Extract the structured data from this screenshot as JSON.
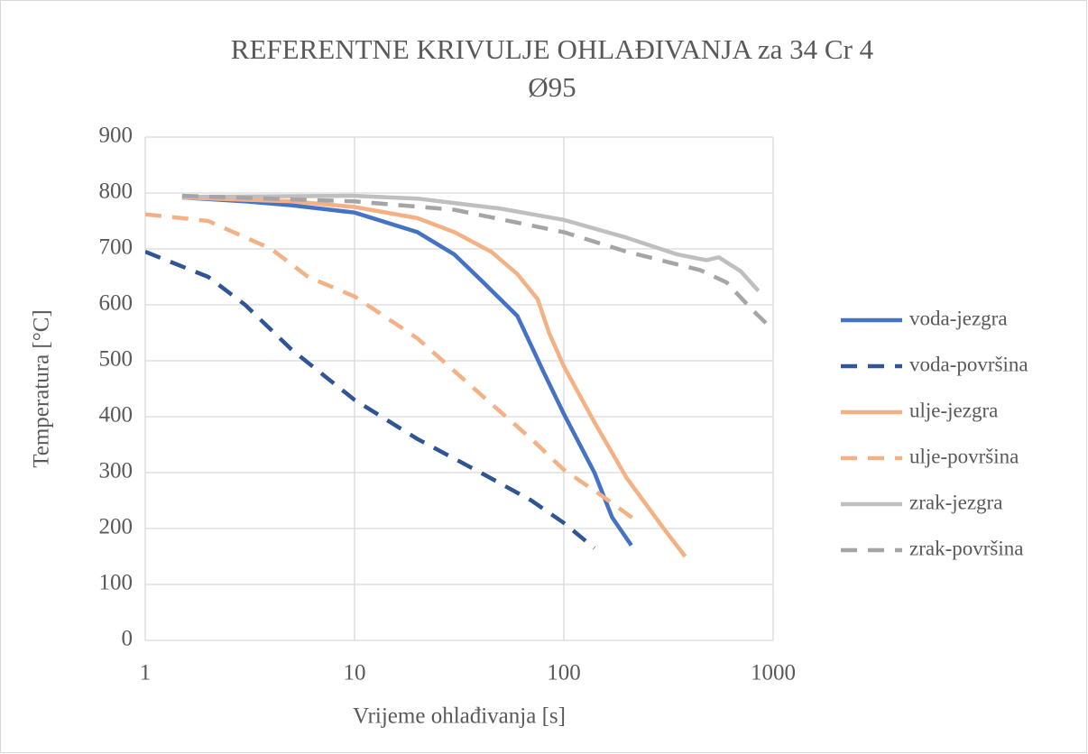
{
  "chart_data": {
    "type": "line",
    "title": [
      "REFERENTNE KRIVULJE OHLAĐIVANJA za 34 Cr 4",
      "Ø95"
    ],
    "x_label": "Vrijeme ohlađivanja [s]",
    "y_label": "Temperatura [°C]",
    "xscale": "log",
    "xlim": [
      1,
      1000
    ],
    "xticks": [
      1,
      10,
      100,
      1000
    ],
    "ylim": [
      0,
      900
    ],
    "yticks": [
      0,
      100,
      200,
      300,
      400,
      500,
      600,
      700,
      800,
      900
    ],
    "grid": true,
    "legend": "right",
    "series": [
      {
        "name": "voda-jezgra",
        "color": "#4472c4",
        "dash": false,
        "x": [
          1.5,
          3,
          5,
          10,
          20,
          30,
          40,
          60,
          80,
          100,
          140,
          170,
          210
        ],
        "values": [
          792,
          785,
          778,
          765,
          730,
          690,
          645,
          580,
          480,
          405,
          300,
          220,
          170
        ]
      },
      {
        "name": "voda-površina",
        "color": "#2f5597",
        "dash": true,
        "x": [
          1,
          2,
          3,
          5,
          10,
          20,
          40,
          70,
          100,
          140
        ],
        "values": [
          695,
          650,
          600,
          520,
          430,
          360,
          300,
          250,
          210,
          165
        ]
      },
      {
        "name": "ulje-jezgra",
        "color": "#f4b183",
        "dash": false,
        "x": [
          1.5,
          5,
          10,
          20,
          30,
          40,
          45,
          60,
          75,
          85,
          100,
          140,
          200,
          300,
          380
        ],
        "values": [
          792,
          785,
          775,
          755,
          730,
          705,
          695,
          655,
          610,
          550,
          490,
          390,
          290,
          200,
          150
        ]
      },
      {
        "name": "ulje-površina",
        "color": "#f4b183",
        "dash": true,
        "x": [
          1,
          2,
          4,
          6,
          10,
          20,
          40,
          70,
          100,
          150,
          220
        ],
        "values": [
          762,
          750,
          700,
          650,
          615,
          540,
          440,
          360,
          305,
          260,
          215
        ]
      },
      {
        "name": "zrak-jezgra",
        "color": "#bfbfbf",
        "dash": false,
        "x": [
          1.5,
          10,
          20,
          50,
          100,
          200,
          350,
          480,
          550,
          700,
          850
        ],
        "values": [
          793,
          795,
          790,
          772,
          752,
          720,
          690,
          680,
          685,
          660,
          625
        ]
      },
      {
        "name": "zrak-površina",
        "color": "#a5a5a5",
        "dash": true,
        "x": [
          1.5,
          10,
          30,
          100,
          200,
          450,
          600,
          800,
          1000
        ],
        "values": [
          795,
          785,
          770,
          730,
          695,
          662,
          640,
          590,
          555
        ]
      }
    ]
  }
}
